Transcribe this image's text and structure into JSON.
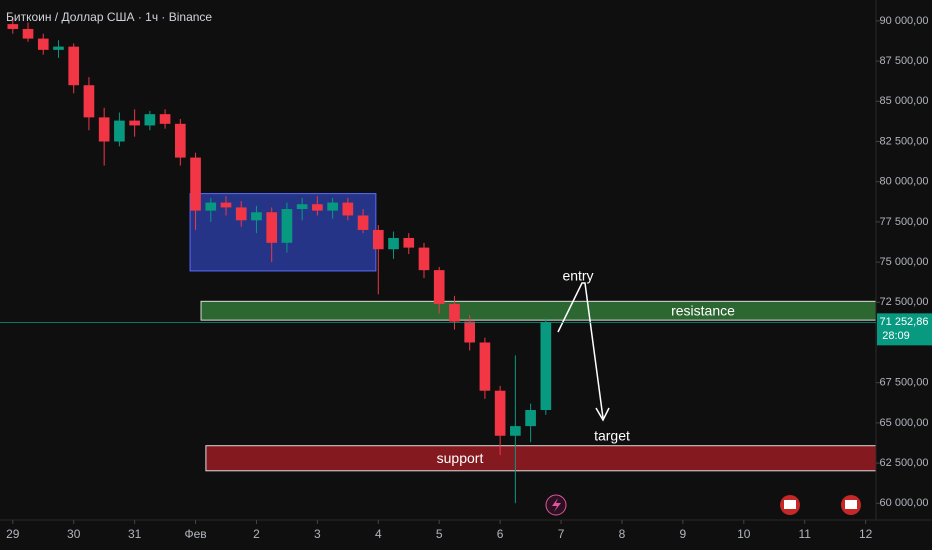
{
  "chart_data": {
    "type": "candlestick",
    "title": "Биткоин / Доллар США · 1ч · Binance",
    "x": [
      0,
      0.25,
      0.5,
      0.75,
      1,
      1.25,
      1.5,
      1.75,
      2,
      2.25,
      2.5,
      2.75,
      3,
      3.25,
      3.5,
      3.75,
      4,
      4.25,
      4.5,
      4.75,
      5,
      5.25,
      5.5,
      5.75,
      6,
      6.25,
      6.5,
      6.75,
      7,
      7.25,
      7.5,
      7.75,
      8,
      8.25,
      8.5,
      8.75
    ],
    "open": [
      89800,
      89500,
      88900,
      88200,
      88400,
      86000,
      84000,
      82500,
      83800,
      83500,
      84200,
      83600,
      81500,
      78200,
      78700,
      78400,
      77600,
      78100,
      76200,
      78300,
      78600,
      78200,
      78700,
      77900,
      77000,
      75800,
      76500,
      75900,
      74500,
      72400,
      71300,
      70000,
      67000,
      64200,
      64800,
      65800
    ],
    "high": [
      90200,
      89900,
      89200,
      88800,
      88600,
      86500,
      84600,
      84300,
      84500,
      84400,
      84500,
      83900,
      81800,
      79000,
      79100,
      78800,
      78500,
      78400,
      78700,
      79000,
      79100,
      79000,
      79000,
      78300,
      77300,
      76900,
      76800,
      76200,
      74700,
      72900,
      71700,
      70300,
      67300,
      69200,
      66200,
      71500
    ],
    "low": [
      89200,
      88700,
      87900,
      87700,
      85500,
      83200,
      81000,
      82200,
      82800,
      83200,
      83300,
      81000,
      77000,
      77500,
      77900,
      77200,
      76800,
      75000,
      75600,
      77600,
      77900,
      77700,
      77600,
      76800,
      73000,
      75200,
      75500,
      74000,
      71800,
      70800,
      69500,
      66500,
      63000,
      60000,
      63800,
      65500
    ],
    "close": [
      89500,
      88900,
      88200,
      88400,
      86000,
      84000,
      82500,
      83800,
      83500,
      84200,
      83600,
      81500,
      78200,
      78700,
      78400,
      77600,
      78100,
      76200,
      78300,
      78600,
      78200,
      78700,
      77900,
      77000,
      75800,
      76500,
      75900,
      74500,
      72400,
      71300,
      70000,
      67000,
      64200,
      64800,
      65800,
      71252.86
    ],
    "up_color": "#089981",
    "down_color": "#f23645",
    "xlim": [
      -0.21,
      14.17
    ],
    "xticks": [
      {
        "value": 0,
        "label": "29"
      },
      {
        "value": 1,
        "label": "30"
      },
      {
        "value": 2,
        "label": "31"
      },
      {
        "value": 3,
        "label": "Фев"
      },
      {
        "value": 4,
        "label": "2"
      },
      {
        "value": 5,
        "label": "3"
      },
      {
        "value": 6,
        "label": "4"
      },
      {
        "value": 7,
        "label": "5"
      },
      {
        "value": 8,
        "label": "6"
      },
      {
        "value": 9,
        "label": "7"
      },
      {
        "value": 10,
        "label": "8"
      },
      {
        "value": 11,
        "label": "9"
      },
      {
        "value": 12,
        "label": "10"
      },
      {
        "value": 13,
        "label": "11"
      },
      {
        "value": 14,
        "label": "12"
      }
    ],
    "ylim": [
      58960,
      91300
    ],
    "yticks": [
      {
        "value": 60000,
        "label": "60 000,00"
      },
      {
        "value": 62500,
        "label": "62 500,00"
      },
      {
        "value": 65000,
        "label": "65 000,00"
      },
      {
        "value": 67500,
        "label": "67 500,00"
      },
      {
        "value": 72500,
        "label": "72 500,00"
      },
      {
        "value": 75000,
        "label": "75 000,00"
      },
      {
        "value": 77500,
        "label": "77 500,00"
      },
      {
        "value": 80000,
        "label": "80 000,00"
      },
      {
        "value": 82500,
        "label": "82 500,00"
      },
      {
        "value": 85000,
        "label": "85 000,00"
      },
      {
        "value": 87500,
        "label": "87 500,00"
      },
      {
        "value": 90000,
        "label": "90 000,00"
      }
    ],
    "zones": [
      {
        "x": [
          2.91,
          5.96
        ],
        "y": [
          74450,
          79260
        ],
        "color": "#2a3b9e"
      },
      {
        "label": "resistance",
        "x": [
          3.09,
          14.17
        ],
        "y": [
          71390,
          72560
        ],
        "color": "#2e6b33"
      },
      {
        "label": "support",
        "x": [
          3.17,
          14.17
        ],
        "y": [
          62020,
          63580
        ],
        "color": "#8c1a22"
      }
    ],
    "annotations": {
      "entry": "entry",
      "target": "target"
    },
    "last_price": {
      "value": 71252.86,
      "label": "71 252,86",
      "countdown": "28:09"
    }
  }
}
